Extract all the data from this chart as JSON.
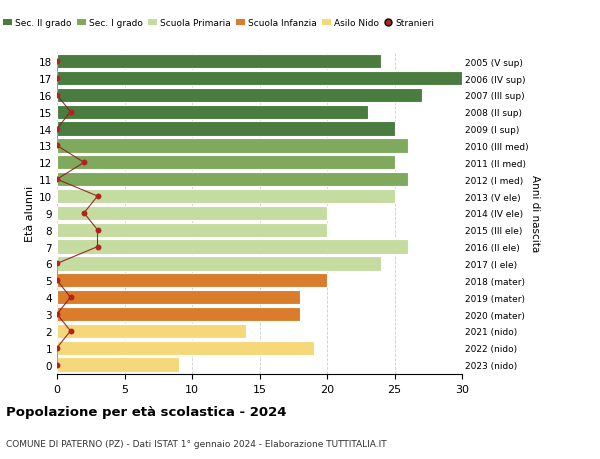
{
  "ages": [
    18,
    17,
    16,
    15,
    14,
    13,
    12,
    11,
    10,
    9,
    8,
    7,
    6,
    5,
    4,
    3,
    2,
    1,
    0
  ],
  "right_labels": [
    "2005 (V sup)",
    "2006 (IV sup)",
    "2007 (III sup)",
    "2008 (II sup)",
    "2009 (I sup)",
    "2010 (III med)",
    "2011 (II med)",
    "2012 (I med)",
    "2013 (V ele)",
    "2014 (IV ele)",
    "2015 (III ele)",
    "2016 (II ele)",
    "2017 (I ele)",
    "2018 (mater)",
    "2019 (mater)",
    "2020 (mater)",
    "2021 (nido)",
    "2022 (nido)",
    "2023 (nido)"
  ],
  "bar_values": [
    24,
    30,
    27,
    23,
    25,
    26,
    25,
    26,
    25,
    20,
    20,
    26,
    24,
    20,
    18,
    18,
    14,
    19,
    9
  ],
  "bar_colors": [
    "#4a7c3f",
    "#4a7c3f",
    "#4a7c3f",
    "#4a7c3f",
    "#4a7c3f",
    "#7faa5e",
    "#7faa5e",
    "#7faa5e",
    "#c5dca0",
    "#c5dca0",
    "#c5dca0",
    "#c5dca0",
    "#c5dca0",
    "#d97c2b",
    "#d97c2b",
    "#d97c2b",
    "#f5d87a",
    "#f5d87a",
    "#f5d87a"
  ],
  "stranieri_values": [
    0,
    0,
    0,
    1,
    0,
    0,
    2,
    0,
    3,
    2,
    3,
    3,
    0,
    0,
    1,
    0,
    1,
    0,
    0
  ],
  "legend_labels": [
    "Sec. II grado",
    "Sec. I grado",
    "Scuola Primaria",
    "Scuola Infanzia",
    "Asilo Nido",
    "Stranieri"
  ],
  "legend_colors": [
    "#4a7c3f",
    "#7faa5e",
    "#c5dca0",
    "#d97c2b",
    "#f5d87a",
    "#b22222"
  ],
  "title": "Popolazione per età scolastica - 2024",
  "subtitle": "COMUNE DI PATERNO (PZ) - Dati ISTAT 1° gennaio 2024 - Elaborazione TUTTITALIA.IT",
  "ylabel_left": "Età alunni",
  "ylabel_right": "Anni di nascita",
  "xlim": [
    0,
    30
  ],
  "bg_color": "#ffffff",
  "bar_edgecolor": "#ffffff",
  "grid_color": "#cccccc"
}
